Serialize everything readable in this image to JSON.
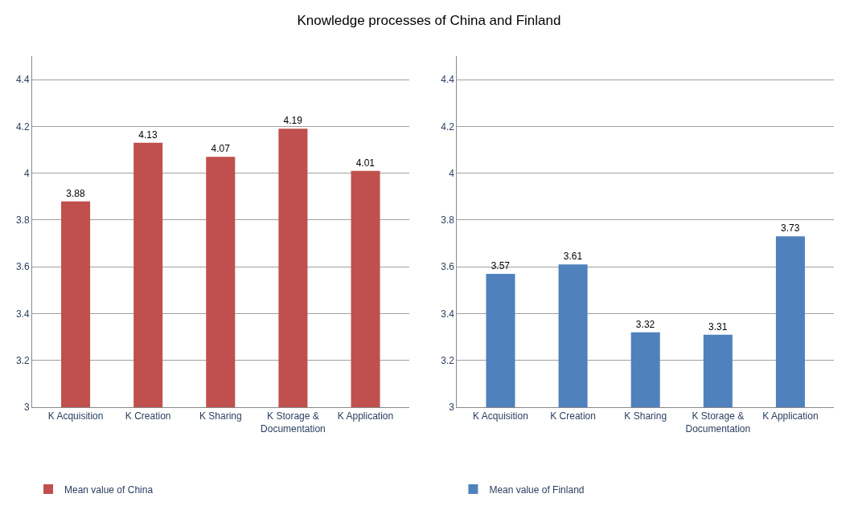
{
  "chart_data": [
    {
      "type": "bar",
      "title": "Knowledge processes of China and Finland",
      "categories": [
        "K Acquisition",
        "K Creation",
        "K Sharing",
        "K Storage & Documentation",
        "K Application"
      ],
      "series": [
        {
          "name": "Mean value of China",
          "color": "#c0504d",
          "values": [
            3.88,
            4.13,
            4.07,
            4.19,
            4.01
          ]
        }
      ],
      "ylim": [
        3,
        4.5
      ],
      "yticks": [
        3,
        3.2,
        3.4,
        3.6,
        3.8,
        4,
        4.2,
        4.4
      ],
      "grid": "y",
      "legend": "bottom left",
      "data_labels": true
    },
    {
      "type": "bar",
      "categories": [
        "K Acquisition",
        "K Creation",
        "K Sharing",
        "K Storage & Documentation",
        "K Application"
      ],
      "series": [
        {
          "name": "Mean value of Finland",
          "color": "#4f81bd",
          "values": [
            3.57,
            3.61,
            3.32,
            3.31,
            3.73
          ]
        }
      ],
      "ylim": [
        3,
        4.5
      ],
      "yticks": [
        3,
        3.2,
        3.4,
        3.6,
        3.8,
        4,
        4.2,
        4.4
      ],
      "grid": "y",
      "legend": "bottom left",
      "data_labels": true
    }
  ]
}
